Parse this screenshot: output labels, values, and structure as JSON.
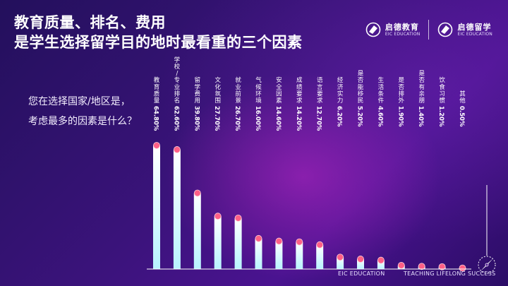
{
  "header": {
    "title_line1": "教育质量、排名、费用",
    "title_line2": "是学生选择留学目的地时最看重的三个因素"
  },
  "question": {
    "line1": "您在选择国家/地区是，",
    "line2": "考虑最多的因素是什么？"
  },
  "logos": [
    {
      "cn": "启德教育",
      "en": "EIC EDUCATION"
    },
    {
      "cn": "启德留学",
      "en": "EIC EDUCATION"
    }
  ],
  "footer": {
    "left": "EIC EDUCATION",
    "right": "TEACHING LIFELONG SUCCESS"
  },
  "colors": {
    "bar_top": "#ffffff",
    "bar_bottom": "#b8f4ff",
    "dot": "#ff5f86",
    "axis": "#ffffff"
  },
  "icons": [
    "logo-mark-icon",
    "compass-icon"
  ],
  "chart_data": {
    "type": "bar",
    "title": "您在选择国家/地区是，考虑最多的因素是什么？",
    "categories": [
      "教育质量",
      "学校/专业排名",
      "留学费用",
      "文化氛围",
      "就业前景",
      "气候环境",
      "安全因素",
      "成绩要求",
      "语言要求",
      "经济实力",
      "是否能移民",
      "生活条件",
      "是否排外",
      "是否有亲朋",
      "饮食习惯",
      "其他"
    ],
    "values": [
      64.8,
      62.6,
      39.8,
      27.7,
      26.7,
      16.0,
      14.6,
      14.2,
      12.7,
      6.2,
      5.2,
      4.6,
      1.9,
      1.4,
      1.2,
      0.5
    ],
    "value_labels": [
      "64.80%",
      "62.60%",
      "39.80%",
      "27.70%",
      "26.70%",
      "16.00%",
      "14.60%",
      "14.20%",
      "12.70%",
      "6.20%",
      "5.20%",
      "4.60%",
      "1.90%",
      "1.40%",
      "1.20%",
      "0.50%"
    ],
    "unit": "%",
    "xlabel": "",
    "ylabel": "",
    "ylim": [
      0,
      70
    ]
  }
}
